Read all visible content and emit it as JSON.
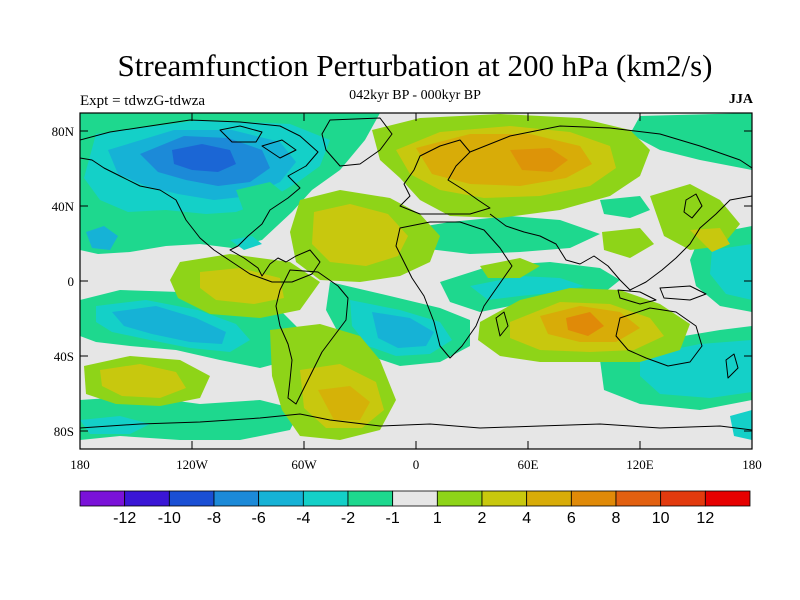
{
  "header": {
    "title": "Streamfunction Perturbation at 200 hPa (km2/s)",
    "expt": "Expt = tdwzG-tdwza",
    "period": "042kyr BP - 000kyr BP",
    "season": "JJA"
  },
  "axes": {
    "lat_ticks": [
      "80N",
      "40N",
      "0",
      "40S",
      "80S"
    ],
    "lon_ticks": [
      "180",
      "120W",
      "60W",
      "0",
      "60E",
      "120E",
      "180"
    ]
  },
  "colorbar": {
    "labels": [
      "-12",
      "-10",
      "-8",
      "-6",
      "-4",
      "-2",
      "-1",
      "1",
      "2",
      "4",
      "6",
      "8",
      "10",
      "12"
    ],
    "colors": [
      "#7a12d8",
      "#3a16d6",
      "#1a4fd4",
      "#1c8ad8",
      "#16b2d6",
      "#14d0c8",
      "#1ed88e",
      "#e6e6e6",
      "#8ed418",
      "#c8c80e",
      "#d8ac08",
      "#e08a08",
      "#e26010",
      "#e23a0e",
      "#e60000"
    ]
  },
  "map": {
    "background_color": "#e6e6e6",
    "ocean_fill": "#e6e6e6",
    "coastline_color": "#000000"
  }
}
